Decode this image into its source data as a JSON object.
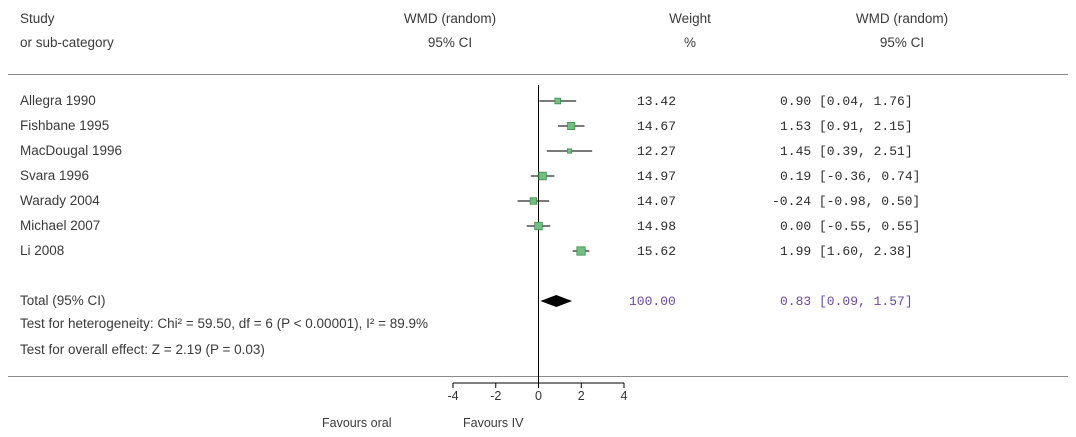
{
  "headers": {
    "study_line1": "Study",
    "study_line2": "or sub-category",
    "wmd_line1": "WMD (random)",
    "wmd_line2": "95% CI",
    "weight_line1": "Weight",
    "weight_line2": "%",
    "wmdr_line1": "WMD (random)",
    "wmdr_line2": "95% CI"
  },
  "chart_data": {
    "type": "forest",
    "studies": [
      {
        "study": "Allegra 1990",
        "weight": "13.42",
        "ci_text": "0.90 [0.04, 1.76]",
        "estimate": 0.9,
        "lower": 0.04,
        "upper": 1.76
      },
      {
        "study": "Fishbane 1995",
        "weight": "14.67",
        "ci_text": "1.53 [0.91, 2.15]",
        "estimate": 1.53,
        "lower": 0.91,
        "upper": 2.15
      },
      {
        "study": "MacDougal 1996",
        "weight": "12.27",
        "ci_text": "1.45 [0.39, 2.51]",
        "estimate": 1.45,
        "lower": 0.39,
        "upper": 2.51
      },
      {
        "study": "Svara 1996",
        "weight": "14.97",
        "ci_text": "0.19 [-0.36, 0.74]",
        "estimate": 0.19,
        "lower": -0.36,
        "upper": 0.74
      },
      {
        "study": "Warady 2004",
        "weight": "14.07",
        "ci_text": "-0.24 [-0.98, 0.50]",
        "estimate": -0.24,
        "lower": -0.98,
        "upper": 0.5
      },
      {
        "study": "Michael 2007",
        "weight": "14.98",
        "ci_text": "0.00 [-0.55, 0.55]",
        "estimate": 0.0,
        "lower": -0.55,
        "upper": 0.55
      },
      {
        "study": "Li 2008",
        "weight": "15.62",
        "ci_text": "1.99 [1.60, 2.38]",
        "estimate": 1.99,
        "lower": 1.6,
        "upper": 2.38
      }
    ],
    "total": {
      "label": "Total (95% CI)",
      "weight": "100.00",
      "ci_text": "0.83 [0.09, 1.57]",
      "estimate": 0.83,
      "lower": 0.09,
      "upper": 1.57
    },
    "heterogeneity": "Test for heterogeneity: Chi² = 59.50, df = 6 (P < 0.00001), I² = 89.9%",
    "overall_effect": "Test for overall effect: Z = 2.19 (P = 0.03)",
    "x_ticks": [
      -4,
      -2,
      0,
      2,
      4
    ],
    "xlim": [
      -4,
      4
    ],
    "favours_left": "Favours oral",
    "favours_right": "Favours IV",
    "marker_color": "#6fbf7f",
    "marker_edge_color": "#3f8f4f",
    "diamond_color": "#000000"
  }
}
